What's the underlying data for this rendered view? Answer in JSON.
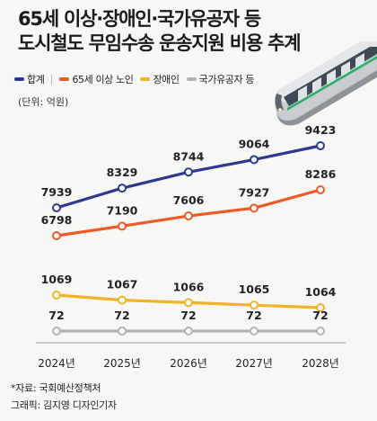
{
  "title": {
    "line1": "65세 이상·장애인·국가유공자 등",
    "line2": "도시철도 무임수송 운송지원 비용 추계"
  },
  "unit_label": "(단위: 억원)",
  "source": "*자료: 국회예산정책처",
  "credit": "그래픽: 김지영 디자인기자",
  "colors": {
    "total": "#2c3a8e",
    "seniors": "#ec5a28",
    "disabled": "#f0b429",
    "veterans": "#b3b3b3"
  },
  "chart_data": {
    "type": "line",
    "categories": [
      "2024년",
      "2025년",
      "2026년",
      "2027년",
      "2028년"
    ],
    "series": [
      {
        "name": "합계",
        "color": "#2c3a8e",
        "values": [
          7939,
          8329,
          8744,
          9064,
          9423
        ]
      },
      {
        "name": "65세 이상 노인",
        "color": "#ec5a28",
        "values": [
          6798,
          7190,
          7606,
          7927,
          8286
        ]
      },
      {
        "name": "장애인",
        "color": "#f0b429",
        "values": [
          1069,
          1067,
          1066,
          1065,
          1064
        ]
      },
      {
        "name": "국가유공자 등",
        "color": "#b3b3b3",
        "values": [
          72,
          72,
          72,
          72,
          72
        ]
      }
    ],
    "title": "65세 이상·장애인·국가유공자 등 도시철도 무임수송 운송지원 비용 추계",
    "xlabel": "",
    "ylabel": "(단위: 억원)",
    "legend_position": "top-left",
    "grid": false
  }
}
